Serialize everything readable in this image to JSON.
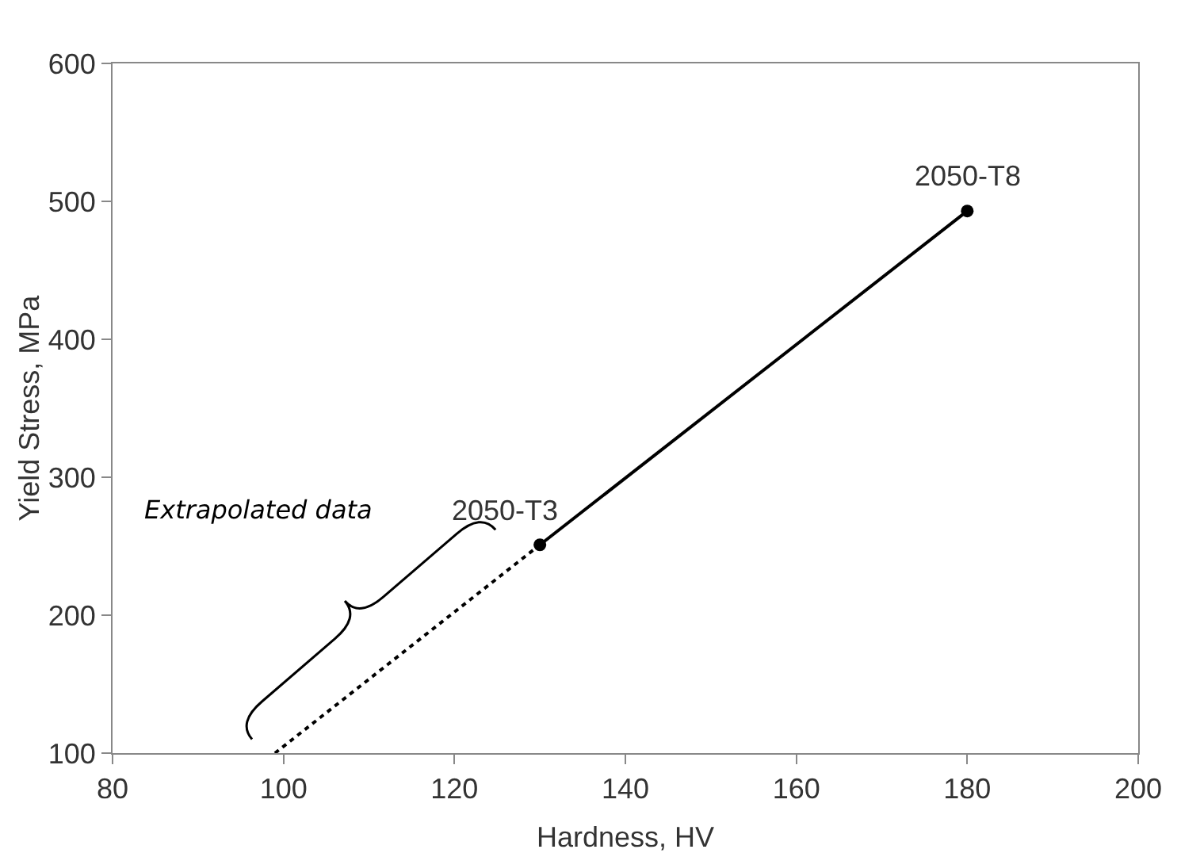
{
  "chart_data": {
    "type": "line",
    "xlabel": "Hardness, HV",
    "ylabel": "Yield Stress, MPa",
    "xlim": [
      80,
      200
    ],
    "xticks": [
      80,
      100,
      120,
      140,
      160,
      180,
      200
    ],
    "ylim": [
      100,
      600
    ],
    "yticks": [
      100,
      200,
      300,
      400,
      500,
      600
    ],
    "grid": false,
    "series": [
      {
        "color": "#000000",
        "x": [
          130,
          180
        ],
        "values": [
          251,
          493
        ],
        "marker": "circle",
        "line_style": "solid"
      },
      {
        "color": "#000000",
        "x": [
          99,
          130
        ],
        "values": [
          100,
          251
        ],
        "marker": "none",
        "line_style": "dotted"
      }
    ],
    "annotations": [
      {
        "text": "2050-T3",
        "x": 130,
        "y": 251
      },
      {
        "text": "2050-T8",
        "x": 180,
        "y": 493
      },
      "Extrapolated data"
    ]
  }
}
